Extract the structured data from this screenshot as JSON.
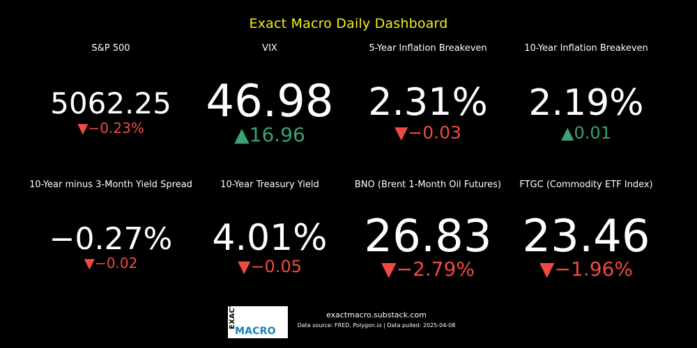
{
  "title": "Exact Macro Daily Dashboard",
  "colors": {
    "title": "#f4f01d",
    "up": "#3aa273",
    "down": "#ef4b42",
    "background": "#000000",
    "logo_blue": "#1584bc"
  },
  "metrics": [
    {
      "label": "S&P 500",
      "value": "5062.25",
      "change": "▼−0.23%",
      "direction": "down"
    },
    {
      "label": "VIX",
      "value": "46.98",
      "change": "▲16.96",
      "direction": "up"
    },
    {
      "label": "5-Year Inflation Breakeven",
      "value": "2.31%",
      "change": "▼−0.03",
      "direction": "down"
    },
    {
      "label": "10-Year Inflation Breakeven",
      "value": "2.19%",
      "change": "▲0.01",
      "direction": "up"
    },
    {
      "label": "10-Year minus 3-Month Yield Spread",
      "value": "−0.27%",
      "change": "▼−0.02",
      "direction": "down"
    },
    {
      "label": "10-Year Treasury Yield",
      "value": "4.01%",
      "change": "▼−0.05",
      "direction": "down"
    },
    {
      "label": "BNO (Brent 1-Month Oil Futures)",
      "value": "26.83",
      "change": "▼−2.79%",
      "direction": "down"
    },
    {
      "label": "FTGC (Commodity ETF Index)",
      "value": "23.46",
      "change": "▼−1.96%",
      "direction": "down"
    }
  ],
  "footer": {
    "logo_exact": "EXACT",
    "logo_macro": "MACRO",
    "url": "exactmacro.substack.com",
    "source": "Data source: FRED, Polygon.io | Data pulled: 2025-04-08"
  }
}
